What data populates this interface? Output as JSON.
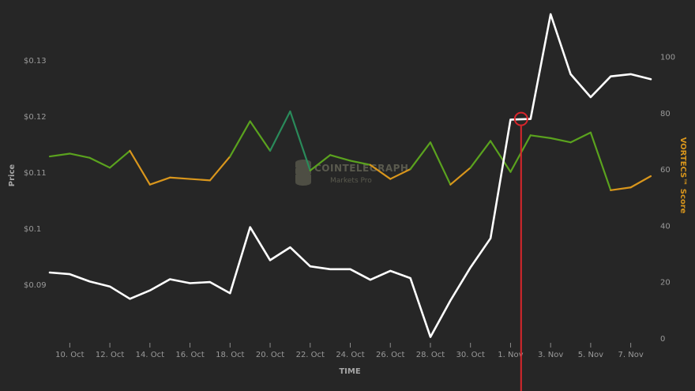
{
  "chart_data": {
    "type": "line",
    "xlabel": "TIME",
    "ylabel_left": "Price",
    "ylabel_right": "VORTECS™ Score",
    "watermark": {
      "title": "COINTELEGRAPH",
      "subtitle": "Markets Pro"
    },
    "x_tick_labels": [
      "10. Oct",
      "12. Oct",
      "14. Oct",
      "16. Oct",
      "18. Oct",
      "20. Oct",
      "22. Oct",
      "24. Oct",
      "26. Oct",
      "28. Oct",
      "30. Oct",
      "1. Nov",
      "3. Nov",
      "5. Nov",
      "7. Nov"
    ],
    "left_axis": {
      "ticks": [
        0.09,
        0.1,
        0.11,
        0.12,
        0.13
      ],
      "tick_labels": [
        "$0.09",
        "$0.1",
        "$0.11",
        "$0.12",
        "$0.13"
      ],
      "range": [
        0.0804,
        0.1382
      ]
    },
    "right_axis": {
      "ticks": [
        0,
        20,
        40,
        60,
        80,
        100
      ],
      "tick_labels": [
        "0",
        "20",
        "40",
        "60",
        "80",
        "100"
      ],
      "range": [
        0,
        115
      ]
    },
    "x": [
      "9. Oct",
      "10. Oct",
      "11. Oct",
      "12. Oct",
      "13. Oct",
      "14. Oct",
      "15. Oct",
      "16. Oct",
      "17. Oct",
      "18. Oct",
      "19. Oct",
      "20. Oct",
      "21. Oct",
      "22. Oct",
      "23. Oct",
      "24. Oct",
      "25. Oct",
      "26. Oct",
      "27. Oct",
      "28. Oct",
      "29. Oct",
      "30. Oct",
      "31. Oct",
      "1. Nov",
      "2. Nov",
      "3. Nov",
      "4. Nov",
      "5. Nov",
      "6. Nov",
      "7. Nov",
      "8. Nov"
    ],
    "series": [
      {
        "name": "Price",
        "axis": "left",
        "color": "#ffffff",
        "values": [
          0.0921,
          0.0918,
          0.0905,
          0.0896,
          0.0874,
          0.0889,
          0.0909,
          0.0902,
          0.0904,
          0.0884,
          0.1002,
          0.0943,
          0.0966,
          0.0932,
          0.0927,
          0.0927,
          0.0908,
          0.0924,
          0.0911,
          0.0806,
          0.0871,
          0.093,
          0.0982,
          0.1194,
          0.1195,
          0.1382,
          0.1275,
          0.1234,
          0.1271,
          0.1275,
          0.1266
        ]
      },
      {
        "name": "VORTECS™ Score",
        "axis": "right",
        "colors": {
          "high": "#5aa21e",
          "low": "#d9961c",
          "peak": "#2a8a5a"
        },
        "values": [
          64.5,
          65.5,
          64,
          60.5,
          66.5,
          54.5,
          57,
          56.5,
          56,
          64.5,
          77,
          66.5,
          80.5,
          59.5,
          65,
          63,
          61.5,
          56.5,
          60,
          69.5,
          54.5,
          60.5,
          70,
          59,
          72,
          71,
          69.5,
          73,
          52.5,
          53.5,
          57.5
        ]
      }
    ],
    "marker": {
      "date": "2. Nov",
      "color": "#d9262c"
    },
    "grid": false,
    "legend": "none"
  }
}
